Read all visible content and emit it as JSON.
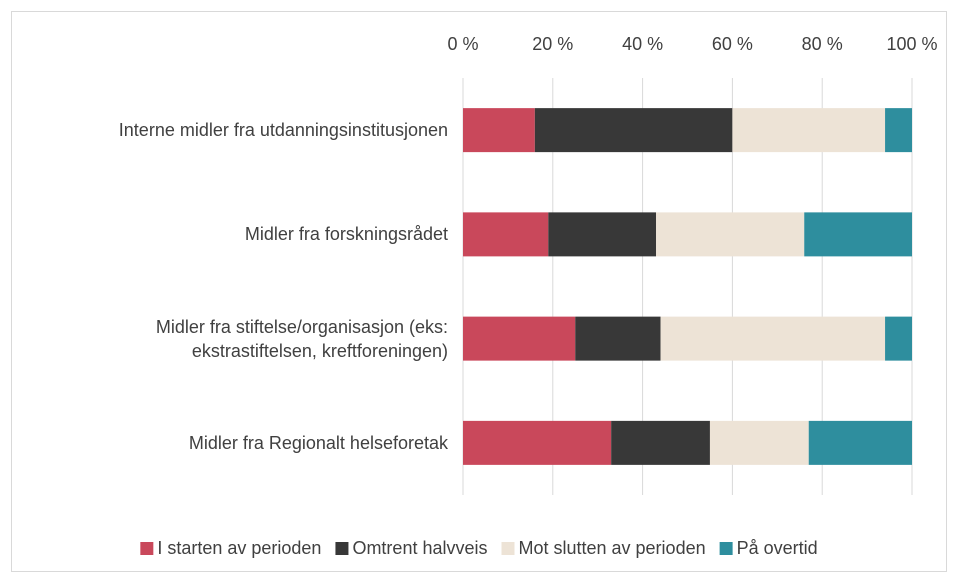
{
  "chart_data": {
    "type": "stacked-bar-horizontal",
    "categories": [
      "Interne midler fra utdanningsinstitusjonen",
      "Midler fra forskningsrådet",
      "Midler fra stiftelse/organisasjon (eks: ekstrastiftelsen, kreftforeningen)",
      "Midler fra Regionalt helseforetak"
    ],
    "series": [
      {
        "name": "I starten av perioden",
        "color": "#c9485b",
        "values": [
          16,
          19,
          25,
          33
        ]
      },
      {
        "name": "Omtrent halvveis",
        "color": "#383838",
        "values": [
          44,
          24,
          19,
          22
        ]
      },
      {
        "name": "Mot slutten av perioden",
        "color": "#ede3d6",
        "values": [
          34,
          33,
          50,
          22
        ]
      },
      {
        "name": "På overtid",
        "color": "#2e8e9e",
        "values": [
          6,
          24,
          6,
          23
        ]
      }
    ],
    "xlim": [
      0,
      100
    ],
    "xticks": [
      {
        "value": 0,
        "label": "0 %"
      },
      {
        "value": 20,
        "label": "20 %"
      },
      {
        "value": 40,
        "label": "40 %"
      },
      {
        "value": 60,
        "label": "60 %"
      },
      {
        "value": 80,
        "label": "80 %"
      },
      {
        "value": 100,
        "label": "100 %"
      }
    ],
    "grid": true,
    "legend": "bottom"
  }
}
